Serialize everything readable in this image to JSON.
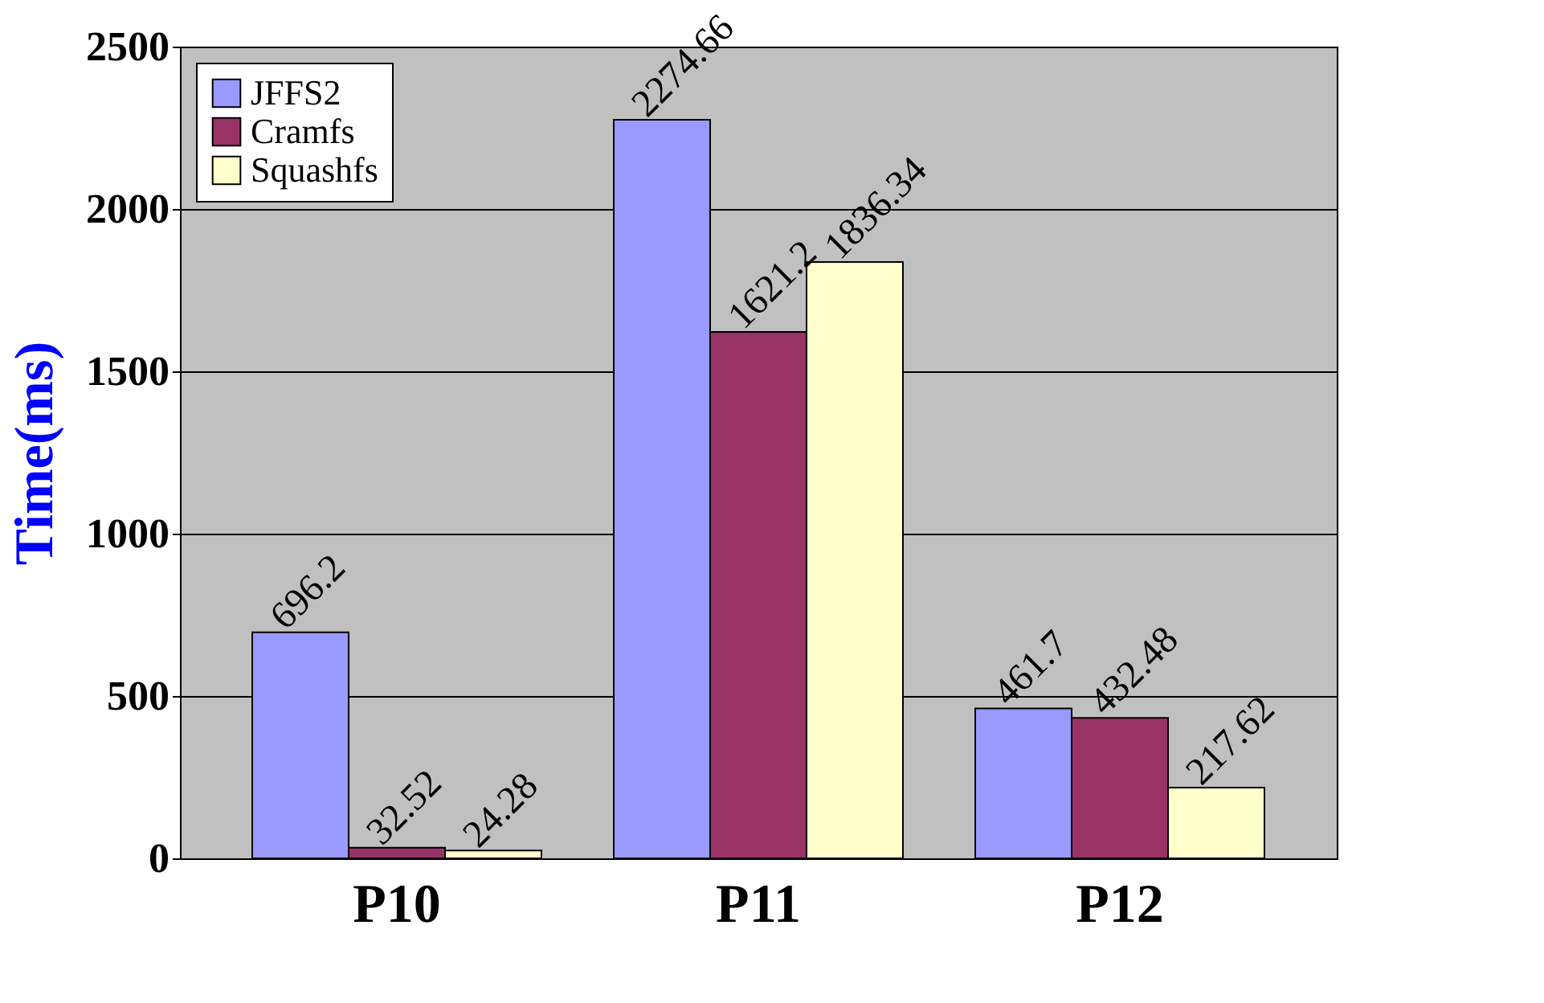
{
  "chart_data": {
    "type": "bar",
    "ylabel": "Time(ms)",
    "categories": [
      "P10",
      "P11",
      "P12"
    ],
    "series": [
      {
        "name": "JFFS2",
        "color": "#9999ff",
        "values": [
          696.2,
          2274.66,
          461.7
        ]
      },
      {
        "name": "Cramfs",
        "color": "#993366",
        "values": [
          32.52,
          1621.2,
          432.48
        ]
      },
      {
        "name": "Squashfs",
        "color": "#ffffcc",
        "values": [
          24.28,
          1836.34,
          217.62
        ]
      }
    ],
    "ylim": [
      0,
      2500
    ],
    "yticks": [
      0,
      500,
      1000,
      1500,
      2000,
      2500
    ],
    "grid": "y",
    "legend": "top left",
    "data_labels": true
  }
}
